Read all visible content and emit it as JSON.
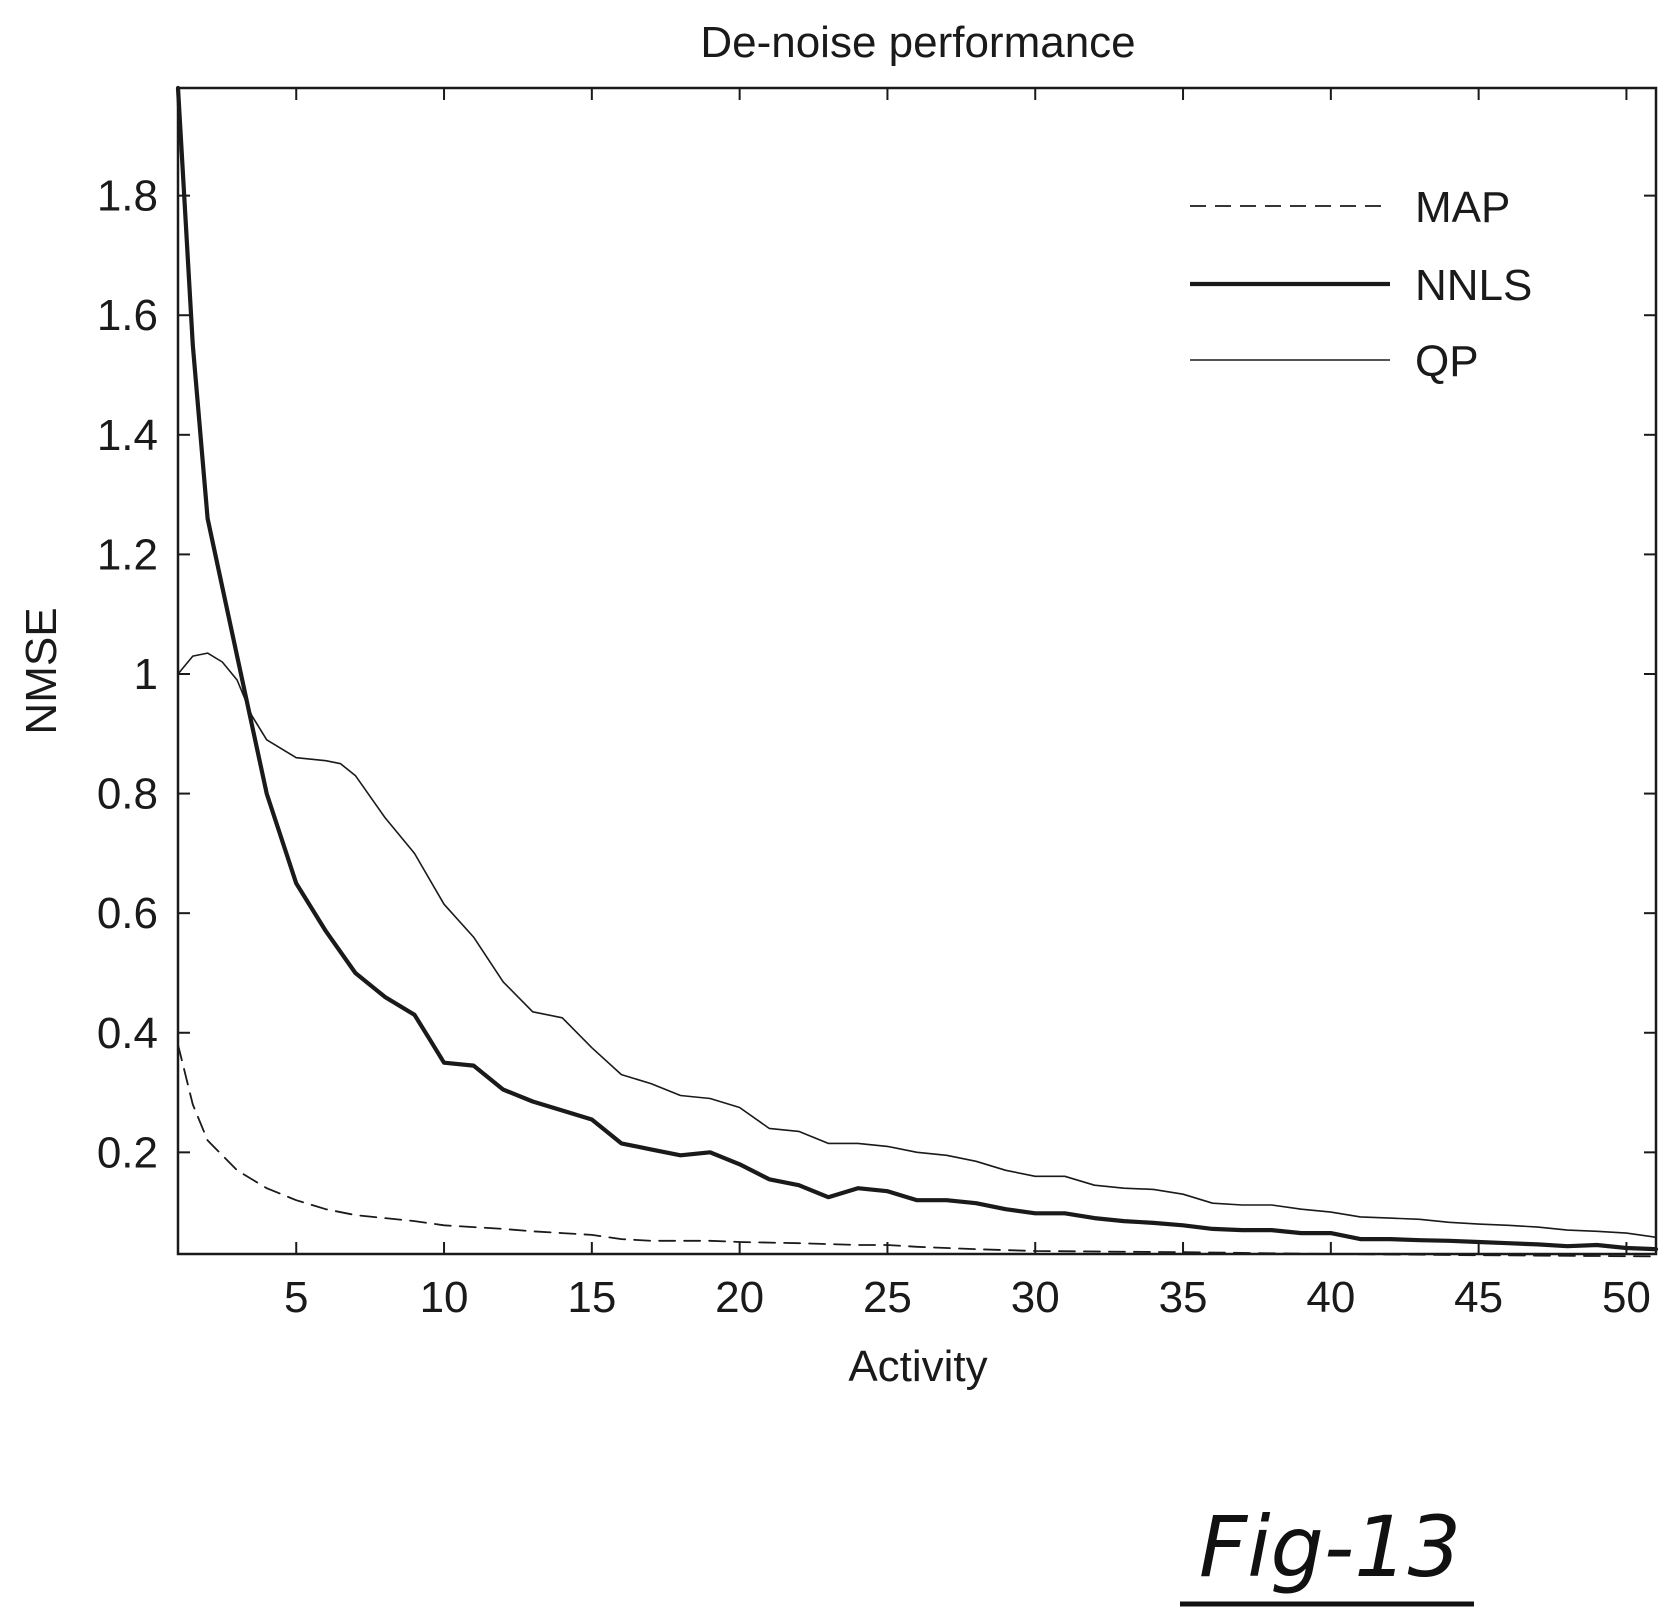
{
  "figure": {
    "label": "Fig-13"
  },
  "chart_data": {
    "type": "line",
    "title": "De-noise performance",
    "xlabel": "Activity",
    "ylabel": "NMSE",
    "xlim": [
      1,
      51
    ],
    "ylim": [
      0.03,
      1.98
    ],
    "xticks": [
      5,
      10,
      15,
      20,
      25,
      30,
      35,
      40,
      45,
      50
    ],
    "xtick_labels": [
      "5",
      "10",
      "15",
      "20",
      "25",
      "30",
      "35",
      "40",
      "45",
      "50"
    ],
    "yticks": [
      0.2,
      0.4,
      0.6,
      0.8,
      1.0,
      1.2,
      1.4,
      1.6,
      1.8
    ],
    "ytick_labels": [
      "0.2",
      "0.4",
      "0.6",
      "0.8",
      "1",
      "1.2",
      "1.4",
      "1.6",
      "1.8"
    ],
    "grid": false,
    "legend_position": "top-right",
    "series": [
      {
        "name": "MAP",
        "style": "dashed",
        "color": "#1a1a1a",
        "x": [
          1,
          1.5,
          2,
          3,
          4,
          5,
          6,
          7,
          8,
          9,
          10,
          11,
          12,
          13,
          14,
          15,
          16,
          17,
          18,
          19,
          20,
          22,
          24,
          25,
          26,
          28,
          30,
          35,
          40,
          45,
          51
        ],
        "y": [
          0.38,
          0.28,
          0.22,
          0.17,
          0.14,
          0.12,
          0.105,
          0.095,
          0.09,
          0.085,
          0.078,
          0.075,
          0.072,
          0.068,
          0.065,
          0.062,
          0.055,
          0.052,
          0.052,
          0.052,
          0.05,
          0.048,
          0.045,
          0.045,
          0.042,
          0.038,
          0.035,
          0.033,
          0.03,
          0.028,
          0.026
        ]
      },
      {
        "name": "NNLS",
        "style": "solid-thick",
        "color": "#1a1a1a",
        "x": [
          1,
          1.5,
          2,
          3,
          4,
          5,
          6,
          7,
          8,
          9,
          9.5,
          10,
          11,
          12,
          13,
          14,
          15,
          16,
          17,
          18,
          19,
          20,
          21,
          22,
          23,
          24,
          25,
          26,
          27,
          28,
          29,
          30,
          31,
          32,
          33,
          34,
          35,
          36,
          37,
          38,
          39,
          40,
          41,
          42,
          43,
          44,
          45,
          46,
          47,
          48,
          49,
          50,
          51
        ],
        "y": [
          1.98,
          1.55,
          1.26,
          1.03,
          0.8,
          0.65,
          0.57,
          0.5,
          0.46,
          0.43,
          0.39,
          0.35,
          0.345,
          0.305,
          0.285,
          0.27,
          0.255,
          0.215,
          0.205,
          0.195,
          0.2,
          0.18,
          0.155,
          0.145,
          0.125,
          0.14,
          0.135,
          0.12,
          0.12,
          0.115,
          0.105,
          0.098,
          0.098,
          0.09,
          0.085,
          0.082,
          0.078,
          0.072,
          0.07,
          0.07,
          0.065,
          0.065,
          0.055,
          0.055,
          0.053,
          0.052,
          0.05,
          0.048,
          0.046,
          0.043,
          0.045,
          0.04,
          0.038
        ]
      },
      {
        "name": "QP",
        "style": "solid-thin",
        "color": "#1a1a1a",
        "x": [
          1,
          1.5,
          2,
          2.5,
          3,
          3.5,
          4,
          5,
          6,
          6.5,
          7,
          8,
          9,
          10,
          11,
          12,
          13,
          14,
          15,
          16,
          17,
          18,
          19,
          20,
          21,
          22,
          23,
          24,
          25,
          26,
          27,
          28,
          29,
          30,
          31,
          32,
          33,
          34,
          35,
          36,
          37,
          38,
          39,
          40,
          41,
          42,
          43,
          44,
          45,
          46,
          47,
          48,
          49,
          50,
          51
        ],
        "y": [
          1.0,
          1.03,
          1.035,
          1.02,
          0.99,
          0.93,
          0.89,
          0.86,
          0.855,
          0.85,
          0.83,
          0.76,
          0.7,
          0.615,
          0.56,
          0.485,
          0.435,
          0.425,
          0.375,
          0.33,
          0.315,
          0.295,
          0.29,
          0.275,
          0.24,
          0.235,
          0.215,
          0.215,
          0.21,
          0.2,
          0.195,
          0.185,
          0.17,
          0.16,
          0.16,
          0.145,
          0.14,
          0.138,
          0.13,
          0.115,
          0.112,
          0.112,
          0.105,
          0.1,
          0.092,
          0.09,
          0.088,
          0.083,
          0.08,
          0.078,
          0.075,
          0.07,
          0.068,
          0.065,
          0.058
        ]
      }
    ]
  }
}
